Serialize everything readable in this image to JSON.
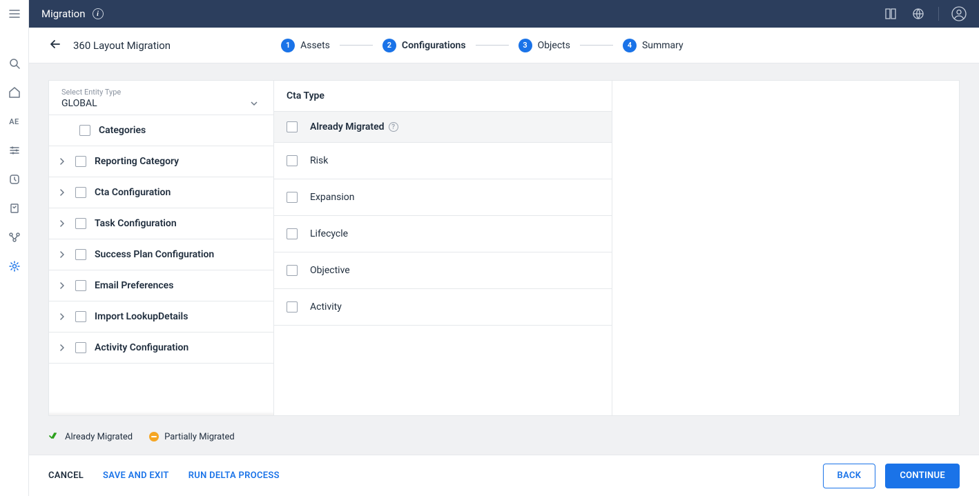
{
  "colors": {
    "topbar_bg": "#2c3e5d",
    "primary": "#1a73e8",
    "border": "#e5e8eb",
    "content_bg": "#f0f1f3",
    "text": "#1f2d3d",
    "muted": "#6b7785",
    "green": "#2ca01c",
    "orange": "#f5a623"
  },
  "rail": {
    "ae_label": "AE"
  },
  "topbar": {
    "title": "Migration"
  },
  "subheader": {
    "title": "360 Layout Migration",
    "steps": [
      {
        "num": "1",
        "label": "Assets",
        "state": "done"
      },
      {
        "num": "2",
        "label": "Configurations",
        "state": "current"
      },
      {
        "num": "3",
        "label": "Objects",
        "state": "pending"
      },
      {
        "num": "4",
        "label": "Summary",
        "state": "pending"
      }
    ]
  },
  "entity": {
    "label": "Select Entity Type",
    "value": "GLOBAL"
  },
  "config_items": [
    {
      "label": "Categories",
      "expandable": false
    },
    {
      "label": "Reporting Category",
      "expandable": true
    },
    {
      "label": "Cta Configuration",
      "expandable": true
    },
    {
      "label": "Task Configuration",
      "expandable": true
    },
    {
      "label": "Success Plan Configuration",
      "expandable": true
    },
    {
      "label": "Email Preferences",
      "expandable": true
    },
    {
      "label": "Import LookupDetails",
      "expandable": true
    },
    {
      "label": "Activity Configuration",
      "expandable": true
    }
  ],
  "right": {
    "heading": "Cta Type",
    "header_label": "Already Migrated",
    "rows": [
      {
        "label": "Risk"
      },
      {
        "label": "Expansion"
      },
      {
        "label": "Lifecycle"
      },
      {
        "label": "Objective"
      },
      {
        "label": "Activity"
      }
    ]
  },
  "legend": {
    "already": "Already Migrated",
    "partial": "Partially Migrated"
  },
  "footer": {
    "cancel": "CANCEL",
    "save_exit": "SAVE AND EXIT",
    "run_delta": "RUN DELTA PROCESS",
    "back": "BACK",
    "continue": "CONTINUE"
  }
}
